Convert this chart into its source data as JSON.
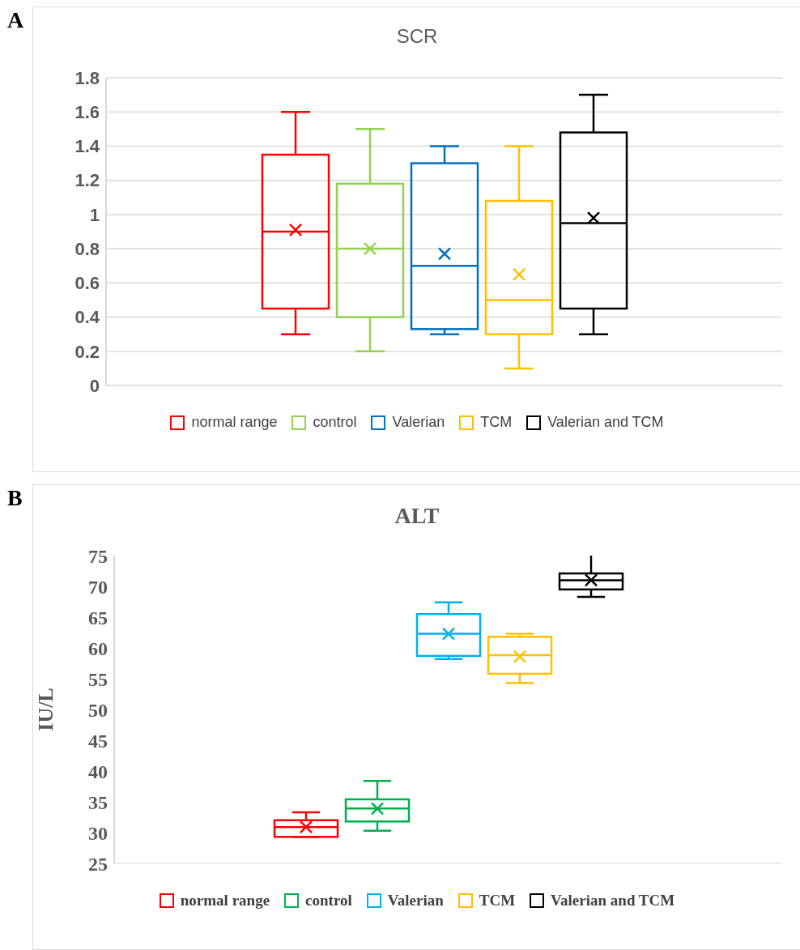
{
  "chart_data": [
    {
      "type": "box",
      "title": "SCR",
      "annotations": [
        "A"
      ],
      "categories": [
        null
      ],
      "ylim": [
        0,
        1.8
      ],
      "yticks": [
        0,
        0.2,
        0.4,
        0.6,
        0.8,
        1,
        1.2,
        1.4,
        1.6,
        1.8
      ],
      "grid": "y",
      "legend": "bottom",
      "tick_labels": "y",
      "series": [
        {
          "name": "normal range",
          "color": "#ff0000",
          "boxes": [
            {
              "low": 0.3,
              "q1": 0.45,
              "median": 0.9,
              "q3": 1.35,
              "high": 1.6,
              "mean": 0.91
            }
          ]
        },
        {
          "name": "control",
          "color": "#92d050",
          "boxes": [
            {
              "low": 0.2,
              "q1": 0.4,
              "median": 0.8,
              "q3": 1.18,
              "high": 1.5,
              "mean": 0.8
            }
          ]
        },
        {
          "name": "Valerian",
          "color": "#0070c0",
          "boxes": [
            {
              "low": 0.3,
              "q1": 0.33,
              "median": 0.7,
              "q3": 1.3,
              "high": 1.4,
              "mean": 0.77
            }
          ]
        },
        {
          "name": "TCM",
          "color": "#ffc000",
          "boxes": [
            {
              "low": 0.1,
              "q1": 0.3,
              "median": 0.5,
              "q3": 1.08,
              "high": 1.4,
              "mean": 0.65
            }
          ]
        },
        {
          "name": "Valerian and TCM",
          "color": "#000000",
          "boxes": [
            {
              "low": 0.3,
              "q1": 0.45,
              "median": 0.95,
              "q3": 1.48,
              "high": 1.7,
              "mean": 0.98
            }
          ]
        }
      ]
    },
    {
      "type": "box",
      "title": "ALT",
      "ylabel": "IU/L",
      "annotations": [
        "B"
      ],
      "categories": [
        null
      ],
      "ylim": [
        25,
        75
      ],
      "yticks": [
        25,
        30,
        35,
        40,
        45,
        50,
        55,
        60,
        65,
        70,
        75
      ],
      "grid": false,
      "legend": "bottom",
      "tick_labels": "y",
      "series": [
        {
          "name": "normal range",
          "color": "#ff0000",
          "boxes": [
            {
              "low": 29.3,
              "q1": 29.3,
              "median": 30.9,
              "q3": 32,
              "high": 33.3,
              "mean": 30.9
            }
          ]
        },
        {
          "name": "control",
          "color": "#00b050",
          "boxes": [
            {
              "low": 30.3,
              "q1": 31.8,
              "median": 33.9,
              "q3": 35.4,
              "high": 38.4,
              "mean": 33.9
            }
          ]
        },
        {
          "name": "Valerian",
          "color": "#00b0f0",
          "boxes": [
            {
              "low": 58.2,
              "q1": 58.7,
              "median": 62.3,
              "q3": 65.5,
              "high": 67.4,
              "mean": 62.3
            }
          ]
        },
        {
          "name": "TCM",
          "color": "#ffc000",
          "boxes": [
            {
              "low": 54.3,
              "q1": 55.8,
              "median": 58.8,
              "q3": 61.8,
              "high": 62.3,
              "mean": 58.6
            }
          ]
        },
        {
          "name": "Valerian and TCM",
          "color": "#000000",
          "boxes": [
            {
              "low": 68.3,
              "q1": 69.5,
              "median": 71,
              "q3": 72.1,
              "high": 75.3,
              "mean": 71
            }
          ]
        }
      ]
    }
  ]
}
